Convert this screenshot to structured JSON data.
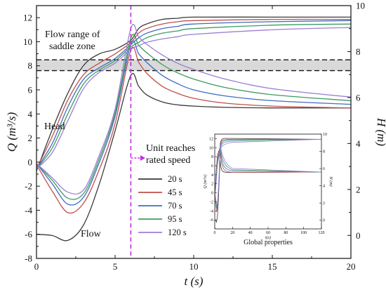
{
  "chart_data": {
    "type": "line",
    "xlabel": "t (s)",
    "ylabel_left": "Q (m³/s)",
    "ylabel_right": "H (m)",
    "xlim": [
      0,
      20
    ],
    "ylim_left": [
      -8,
      13
    ],
    "ylim_right": [
      -1,
      10
    ],
    "x_ticks": [
      "0",
      "5",
      "10",
      "15",
      "20"
    ],
    "y_left_ticks": [
      "-8",
      "-6",
      "-4",
      "-2",
      "0",
      "2",
      "4",
      "6",
      "8",
      "10",
      "12"
    ],
    "y_right_ticks": [
      "0",
      "2",
      "4",
      "6",
      "8",
      "10"
    ],
    "saddle_zone": {
      "y_low": 7.6,
      "y_high": 8.5
    },
    "rated_speed_time": 6,
    "series": [
      {
        "name": "20 s",
        "color": "#3a3a3a",
        "flow": [
          [
            0,
            -6
          ],
          [
            1,
            -6.1
          ],
          [
            2,
            -6.5
          ],
          [
            3,
            -5.2
          ],
          [
            4,
            -1.8
          ],
          [
            5,
            2.6
          ],
          [
            6,
            7.2
          ],
          [
            6.5,
            6.3
          ],
          [
            7,
            5.6
          ],
          [
            8,
            5.0
          ],
          [
            9,
            4.75
          ],
          [
            10,
            4.65
          ],
          [
            12,
            4.55
          ],
          [
            15,
            4.5
          ],
          [
            20,
            4.5
          ]
        ],
        "head": [
          [
            0,
            2.8
          ],
          [
            1,
            4.6
          ],
          [
            2,
            6.2
          ],
          [
            3,
            7.4
          ],
          [
            4,
            7.9
          ],
          [
            5,
            8.1
          ],
          [
            6,
            8.5
          ],
          [
            6.5,
            9.0
          ],
          [
            7,
            9.2
          ],
          [
            8,
            9.4
          ],
          [
            9,
            9.45
          ],
          [
            10,
            9.5
          ],
          [
            15,
            9.5
          ],
          [
            20,
            9.5
          ]
        ]
      },
      {
        "name": "45 s",
        "color": "#c0504d",
        "flow": [
          [
            0,
            -0.2
          ],
          [
            1,
            -2.4
          ],
          [
            2,
            -4.2
          ],
          [
            3,
            -3.4
          ],
          [
            4,
            -0.6
          ],
          [
            5,
            3.2
          ],
          [
            6,
            9.3
          ],
          [
            6.5,
            8.3
          ],
          [
            7,
            7.4
          ],
          [
            8,
            6.3
          ],
          [
            9,
            5.7
          ],
          [
            10,
            5.3
          ],
          [
            12,
            4.9
          ],
          [
            15,
            4.65
          ],
          [
            20,
            4.5
          ]
        ],
        "head": [
          [
            0,
            2.9
          ],
          [
            1,
            4.3
          ],
          [
            2,
            5.9
          ],
          [
            3,
            7.0
          ],
          [
            4,
            7.5
          ],
          [
            5,
            7.9
          ],
          [
            6,
            8.4
          ],
          [
            6.5,
            8.8
          ],
          [
            7,
            9.0
          ],
          [
            8,
            9.2
          ],
          [
            9,
            9.3
          ],
          [
            10,
            9.35
          ],
          [
            15,
            9.4
          ],
          [
            20,
            9.4
          ]
        ]
      },
      {
        "name": "70 s",
        "color": "#3f6dc0",
        "flow": [
          [
            0,
            -0.1
          ],
          [
            1,
            -1.8
          ],
          [
            2,
            -3.5
          ],
          [
            3,
            -2.9
          ],
          [
            4,
            0.0
          ],
          [
            5,
            3.8
          ],
          [
            6,
            9.8
          ],
          [
            6.5,
            9.0
          ],
          [
            7,
            8.3
          ],
          [
            8,
            7.2
          ],
          [
            9,
            6.5
          ],
          [
            10,
            6.0
          ],
          [
            12,
            5.5
          ],
          [
            15,
            5.1
          ],
          [
            20,
            4.8
          ]
        ],
        "head": [
          [
            0,
            2.9
          ],
          [
            1,
            4.0
          ],
          [
            2,
            5.6
          ],
          [
            3,
            6.8
          ],
          [
            4,
            7.3
          ],
          [
            5,
            7.7
          ],
          [
            6,
            8.3
          ],
          [
            6.5,
            8.6
          ],
          [
            7,
            8.8
          ],
          [
            8,
            9.0
          ],
          [
            9,
            9.1
          ],
          [
            10,
            9.2
          ],
          [
            15,
            9.3
          ],
          [
            20,
            9.35
          ]
        ]
      },
      {
        "name": "95 s",
        "color": "#3e9b5f",
        "flow": [
          [
            0,
            -0.1
          ],
          [
            1,
            -1.5
          ],
          [
            2,
            -3.0
          ],
          [
            3,
            -2.6
          ],
          [
            4,
            0.3
          ],
          [
            5,
            4.1
          ],
          [
            6,
            10.3
          ],
          [
            6.5,
            9.7
          ],
          [
            7,
            9.1
          ],
          [
            8,
            8.1
          ],
          [
            9,
            7.4
          ],
          [
            10,
            6.9
          ],
          [
            12,
            6.2
          ],
          [
            15,
            5.6
          ],
          [
            20,
            5.1
          ]
        ],
        "head": [
          [
            0,
            2.9
          ],
          [
            1,
            3.8
          ],
          [
            2,
            5.3
          ],
          [
            3,
            6.6
          ],
          [
            4,
            7.2
          ],
          [
            5,
            7.6
          ],
          [
            6,
            8.2
          ],
          [
            6.5,
            8.4
          ],
          [
            7,
            8.6
          ],
          [
            8,
            8.8
          ],
          [
            9,
            8.9
          ],
          [
            10,
            9.0
          ],
          [
            15,
            9.15
          ],
          [
            20,
            9.2
          ]
        ]
      },
      {
        "name": "120 s",
        "color": "#9b7fd6",
        "flow": [
          [
            0,
            -0.1
          ],
          [
            1,
            -1.3
          ],
          [
            2,
            -2.5
          ],
          [
            3,
            -2.3
          ],
          [
            4,
            0.6
          ],
          [
            5,
            4.4
          ],
          [
            6,
            11.1
          ],
          [
            6.5,
            10.4
          ],
          [
            7,
            9.8
          ],
          [
            8,
            8.9
          ],
          [
            9,
            8.2
          ],
          [
            10,
            7.7
          ],
          [
            12,
            6.9
          ],
          [
            15,
            6.1
          ],
          [
            20,
            5.4
          ]
        ],
        "head": [
          [
            0,
            2.9
          ],
          [
            1,
            3.6
          ],
          [
            2,
            5.0
          ],
          [
            3,
            6.4
          ],
          [
            4,
            7.1
          ],
          [
            5,
            7.5
          ],
          [
            6,
            8.1
          ],
          [
            6.5,
            8.25
          ],
          [
            7,
            8.4
          ],
          [
            8,
            8.55
          ],
          [
            9,
            8.65
          ],
          [
            10,
            8.75
          ],
          [
            15,
            8.95
          ],
          [
            20,
            9.05
          ]
        ]
      }
    ],
    "annotations": {
      "flow_range_line1": "Flow range of",
      "flow_range_line2": "saddle zone",
      "head_label": "Head",
      "flow_label": "Flow",
      "rated_speed_line1": "Unit reaches",
      "rated_speed_line2": "rated speed"
    },
    "inset": {
      "title": "Global properties",
      "xlabel": "t(s)",
      "ylabel_left": "Q (m³/s)",
      "ylabel_right": "H (m)",
      "x_ticks": [
        "0",
        "20",
        "40",
        "60",
        "80",
        "100",
        "120"
      ],
      "y_left_ticks": [
        "-6",
        "-4",
        "-2",
        "0",
        "2",
        "4",
        "6",
        "8",
        "10",
        "12"
      ],
      "y_right_ticks": [
        "0",
        "2",
        "4",
        "6",
        "8",
        "10"
      ],
      "xlim": [
        0,
        120
      ],
      "ylim_left": [
        -8,
        13
      ],
      "ylim_right": [
        -1,
        10
      ],
      "flow_end": 4.6,
      "head_end": 9.4
    }
  }
}
